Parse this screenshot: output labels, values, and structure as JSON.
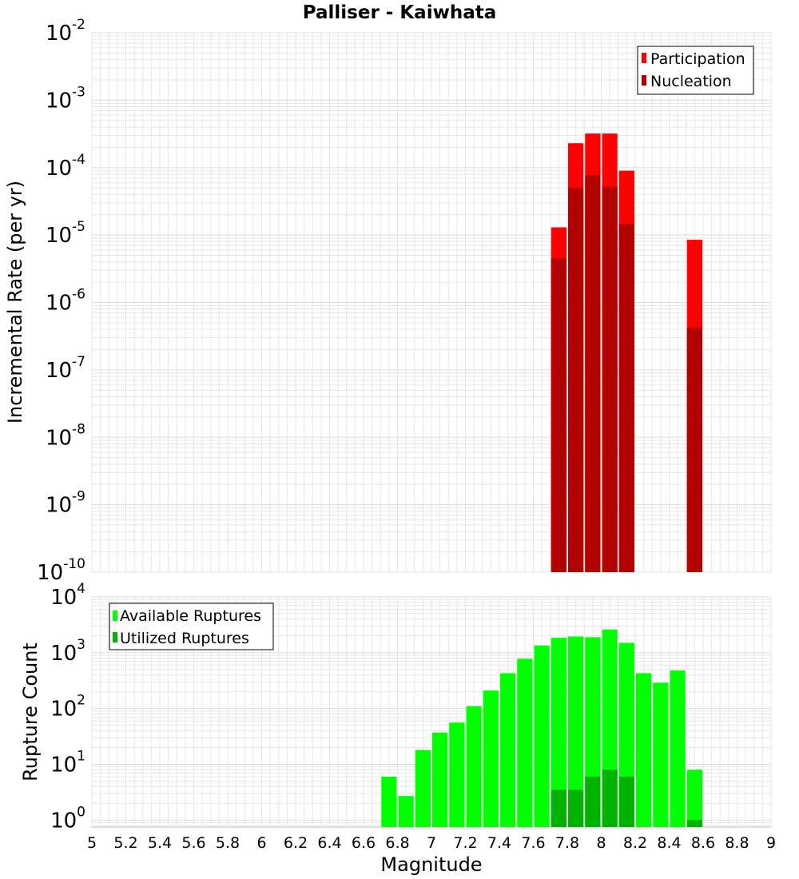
{
  "title": "Palliser - Kaiwhata",
  "chart_data": [
    {
      "type": "bar",
      "title": "Palliser - Kaiwhata",
      "xlabel": "Magnitude",
      "ylabel": "Incremental Rate (per yr)",
      "yscale": "log",
      "xlim": [
        5,
        9
      ],
      "ylim": [
        1e-10,
        0.01
      ],
      "grid": true,
      "legend_position": "top-right",
      "y_tick_exponents": [
        -10,
        -9,
        -8,
        -7,
        -6,
        -5,
        -4,
        -3,
        -2
      ],
      "bar_width": 0.1,
      "series": [
        {
          "name": "Participation",
          "color": "#ff0000",
          "x": [
            7.75,
            7.85,
            7.95,
            8.05,
            8.15,
            8.55
          ],
          "values": [
            1.3e-05,
            0.00023,
            0.00032,
            0.00032,
            9e-05,
            8.5e-06
          ]
        },
        {
          "name": "Nucleation",
          "color": "#b30000",
          "x": [
            7.75,
            7.85,
            7.95,
            8.05,
            8.15,
            8.55
          ],
          "values": [
            4.5e-06,
            5e-05,
            7.7e-05,
            5.2e-05,
            1.45e-05,
            4.2e-07
          ]
        }
      ]
    },
    {
      "type": "bar",
      "xlabel": "Magnitude",
      "ylabel": "Rupture Count",
      "yscale": "log",
      "xlim": [
        5,
        9
      ],
      "ylim": [
        0.75,
        10000
      ],
      "grid": true,
      "legend_position": "top-left",
      "x_ticks": [
        "5",
        "5.2",
        "5.4",
        "5.6",
        "5.8",
        "6",
        "6.2",
        "6.4",
        "6.6",
        "6.8",
        "7",
        "7.2",
        "7.4",
        "7.6",
        "7.8",
        "8",
        "8.2",
        "8.4",
        "8.6",
        "8.8",
        "9"
      ],
      "y_tick_exponents": [
        0,
        1,
        2,
        3,
        4
      ],
      "bar_width": 0.1,
      "series": [
        {
          "name": "Available Ruptures",
          "color": "#00ff00",
          "x": [
            6.75,
            6.85,
            6.95,
            7.05,
            7.15,
            7.25,
            7.35,
            7.45,
            7.55,
            7.65,
            7.75,
            7.85,
            7.95,
            8.05,
            8.15,
            8.25,
            8.35,
            8.45,
            8.55
          ],
          "values": [
            6,
            2.7,
            18,
            37,
            56,
            110,
            210,
            430,
            780,
            1350,
            1850,
            1950,
            1900,
            2600,
            1500,
            430,
            290,
            480,
            8
          ]
        },
        {
          "name": "Utilized Ruptures",
          "color": "#00b300",
          "x": [
            7.75,
            7.85,
            7.95,
            8.05,
            8.15,
            8.55
          ],
          "values": [
            3.5,
            3.5,
            6,
            8,
            6,
            1
          ]
        }
      ]
    }
  ]
}
